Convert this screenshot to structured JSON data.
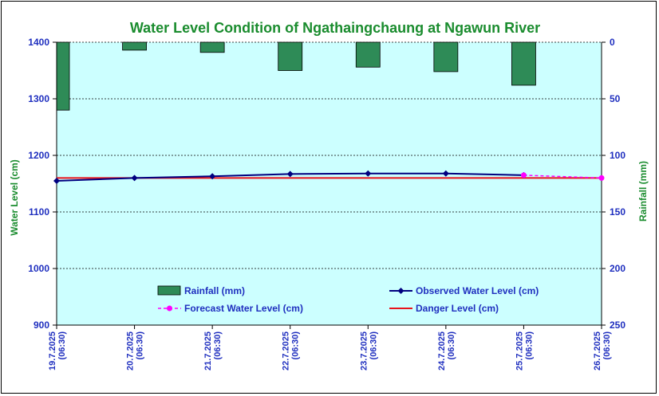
{
  "chart_data": {
    "type": "bar+line",
    "title": "Water Level Condition of  Ngathaingchaung at Ngawun River",
    "ylabel_left": "Water Level (cm)",
    "ylabel_right": "Rainfall (mm)",
    "ylim_left": [
      900,
      1400
    ],
    "yticks_left": [
      900,
      1000,
      1100,
      1200,
      1300,
      1400
    ],
    "ylim_right": [
      0,
      250
    ],
    "right_axis_inverted": true,
    "yticks_right": [
      0,
      50,
      100,
      150,
      200,
      250
    ],
    "x_labels": [
      [
        "19.7.2025",
        "(06:30)"
      ],
      [
        "20.7.2025",
        "(06:30)"
      ],
      [
        "21.7.2025",
        "(06:30)"
      ],
      [
        "22.7.2025",
        "(06:30)"
      ],
      [
        "23.7.2025",
        "(06:30)"
      ],
      [
        "24.7.2025",
        "(06:30)"
      ],
      [
        "25.7.2025",
        "(06:30)"
      ],
      [
        "26.7.2025",
        "(06:30)"
      ]
    ],
    "grid": true,
    "legend_placement": "bottom-inside",
    "series": [
      {
        "name": "Rainfall (mm)",
        "kind": "bar",
        "axis": "right",
        "color": "#2e8b57",
        "values": [
          60,
          7,
          9,
          25,
          22,
          26,
          38
        ]
      },
      {
        "name": "Observed Water Level (cm)",
        "kind": "line",
        "axis": "left",
        "color": "#000080",
        "marker": "diamond",
        "values": [
          1155,
          1160,
          1163,
          1167,
          1168,
          1168,
          1165,
          null
        ]
      },
      {
        "name": "Forecast Water Level (cm)",
        "kind": "line",
        "axis": "left",
        "color": "#ff00ff",
        "dashed": true,
        "marker": "circle",
        "values": [
          null,
          null,
          null,
          null,
          null,
          null,
          1165,
          1160
        ]
      },
      {
        "name": "Danger Level (cm)",
        "kind": "line",
        "axis": "left",
        "color": "#e8141c",
        "values": [
          1160,
          1160,
          1160,
          1160,
          1160,
          1160,
          1160,
          1160
        ]
      }
    ],
    "colors": {
      "plot_background": "#ccffff",
      "axis_text": "#1f2fbf",
      "title_text": "#1a8c2e"
    }
  }
}
